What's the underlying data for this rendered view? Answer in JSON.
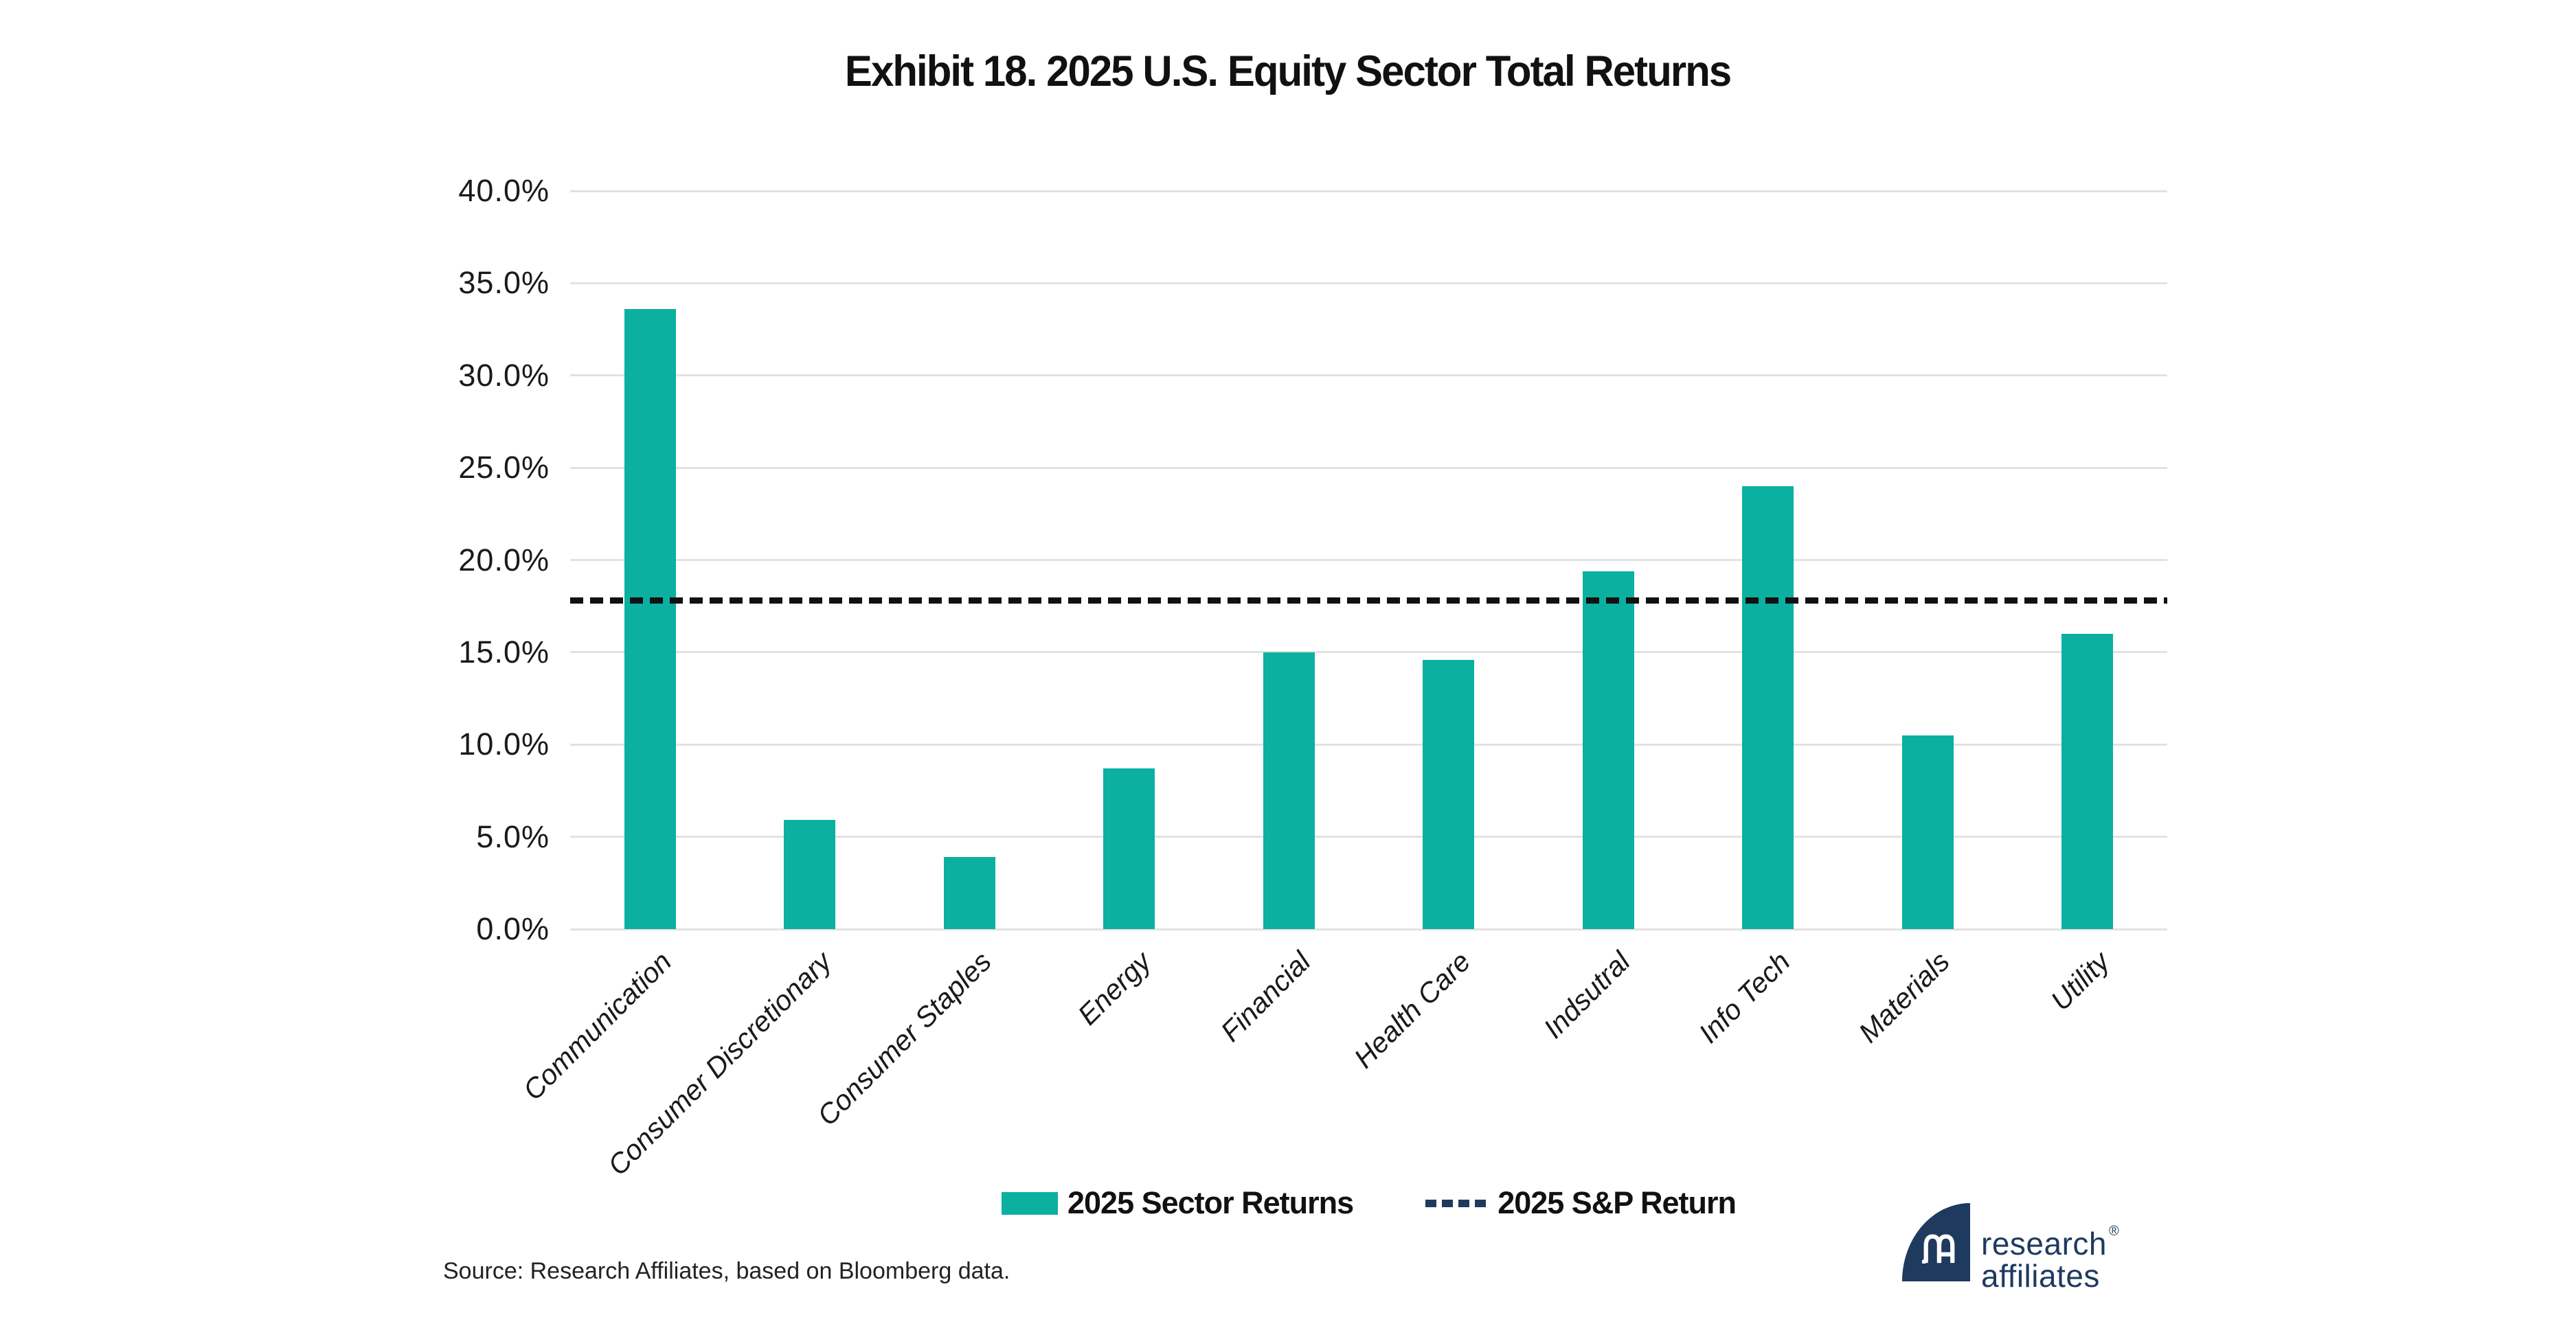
{
  "title": "Exhibit 18. 2025 U.S. Equity Sector Total Returns",
  "source": "Source: Research Affiliates, based on Bloomberg data.",
  "legend": {
    "sector_label": "2025 Sector Returns",
    "sp_label": "2025 S&P Return"
  },
  "logo": {
    "line1": "research",
    "line2": "affiliates",
    "registered": "®"
  },
  "colors": {
    "teal": "#0BB0A0",
    "navy": "#1F3A5F",
    "gridline": "#E2E2E2",
    "dash_line": "#111111",
    "text": "#1A1A1A"
  },
  "chart_data": {
    "type": "bar",
    "title": "Exhibit 18. 2025 U.S. Equity Sector Total Returns",
    "categories": [
      "Communication",
      "Consumer Discretionary",
      "Consumer Staples",
      "Energy",
      "Financial",
      "Health Care",
      "Indsutral",
      "Info Tech",
      "Materials",
      "Utility"
    ],
    "values": [
      33.6,
      5.9,
      3.9,
      8.7,
      15.0,
      14.6,
      19.4,
      24.0,
      10.5,
      16.0
    ],
    "series_name": "2025 Sector Returns",
    "reference_line": {
      "label": "2025 S&P Return",
      "value": 17.8,
      "style": "dashed"
    },
    "xlabel": "",
    "ylabel": "",
    "ylim": [
      0,
      40
    ],
    "ytick_step": 5,
    "ytick_format": "one_decimal_percent",
    "grid": true,
    "legend_position": "bottom"
  }
}
